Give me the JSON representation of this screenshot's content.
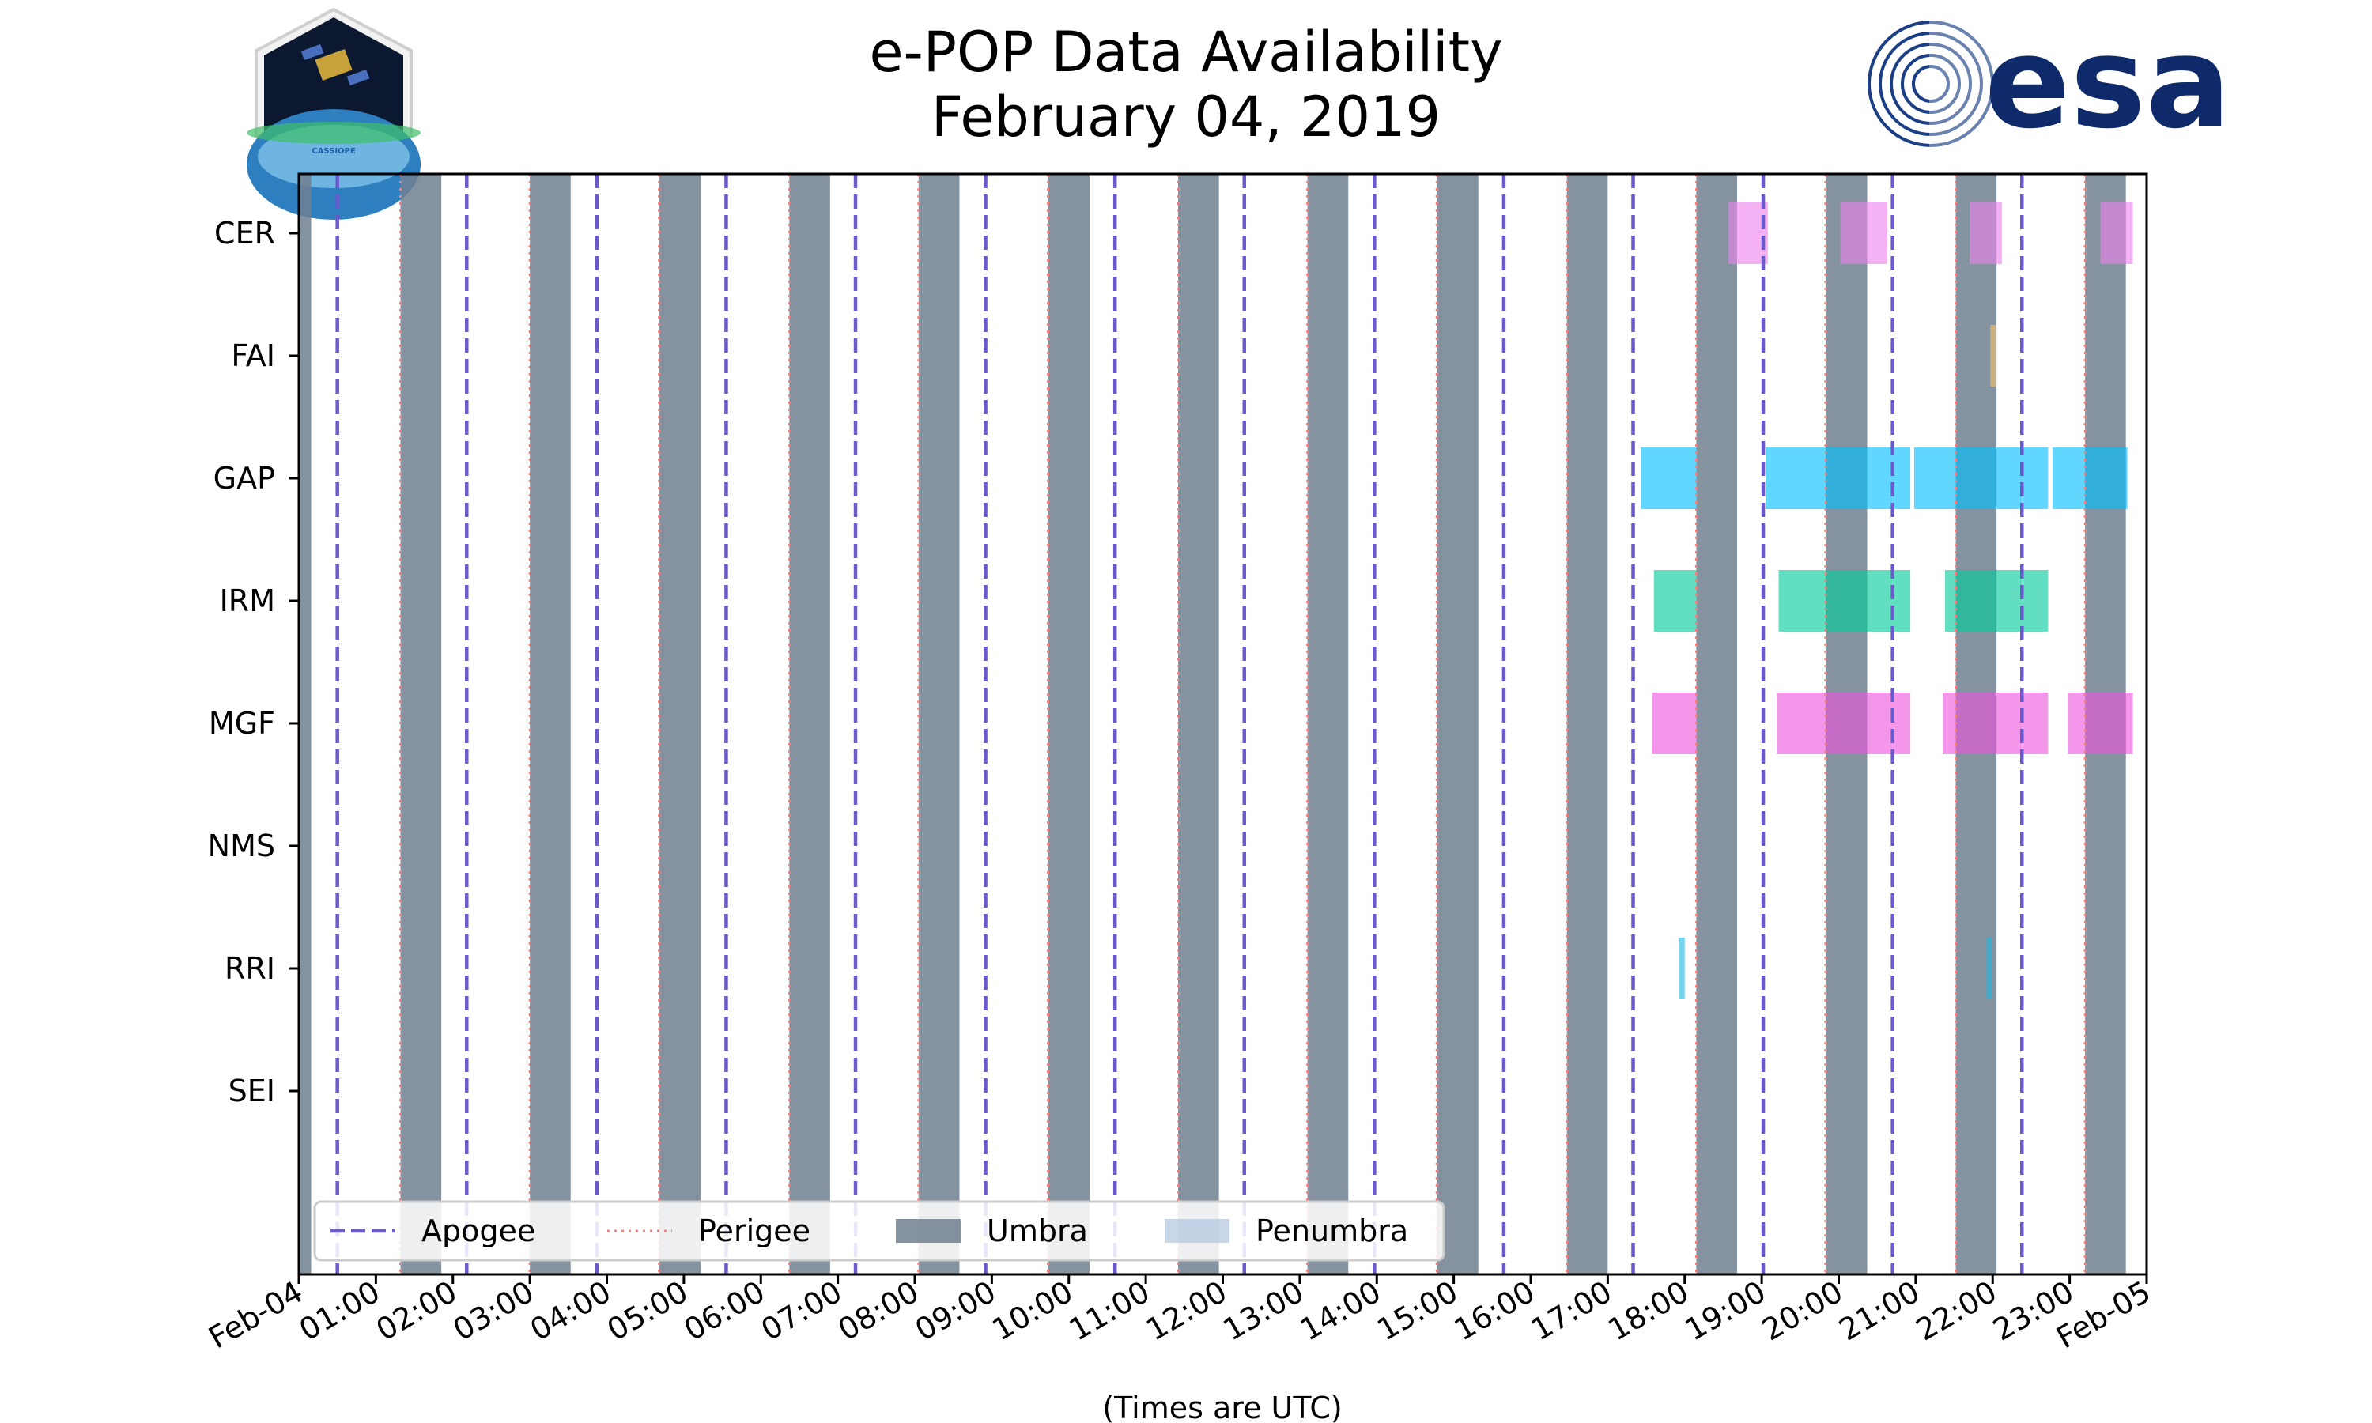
{
  "title_line1": "e-POP Data Availability",
  "title_line2": "February 04, 2019",
  "logos": {
    "left_label": "CASSIOPE",
    "right_label": "esa"
  },
  "colors": {
    "apogee": "#6a5acd",
    "perigee": "#f08080",
    "umbra": "#708090",
    "penumbra": "#b0c4de",
    "CER": "#ee82ee",
    "FAI": "#f4c56a",
    "GAP": "#00bfff",
    "IRM": "#00cc99",
    "MGF": "#ee55dd",
    "RRI": "#1fb8e0"
  },
  "chart_data": {
    "type": "timeline",
    "title": "e-POP Data Availability February 04, 2019",
    "xlabel": "(Times are UTC)",
    "ylabel": "",
    "x_range_hours": [
      0,
      24
    ],
    "x_ticks": [
      "Feb-04",
      "01:00",
      "02:00",
      "03:00",
      "04:00",
      "05:00",
      "06:00",
      "07:00",
      "08:00",
      "09:00",
      "10:00",
      "11:00",
      "12:00",
      "13:00",
      "14:00",
      "15:00",
      "16:00",
      "17:00",
      "18:00",
      "19:00",
      "20:00",
      "21:00",
      "22:00",
      "23:00",
      "Feb-05"
    ],
    "instruments": [
      "CER",
      "FAI",
      "GAP",
      "IRM",
      "MGF",
      "NMS",
      "RRI",
      "SEI"
    ],
    "apogee_hours": [
      0.5,
      2.18,
      3.87,
      5.55,
      7.23,
      8.92,
      10.6,
      12.28,
      13.97,
      15.65,
      17.33,
      19.02,
      20.7,
      22.38
    ],
    "perigee_hours": [
      1.32,
      3.0,
      4.68,
      6.37,
      8.05,
      9.73,
      11.42,
      13.1,
      14.78,
      16.47,
      18.15,
      19.83,
      21.52,
      23.2
    ],
    "umbra_intervals": [
      [
        0.0,
        0.16
      ],
      [
        1.32,
        1.85
      ],
      [
        3.0,
        3.53
      ],
      [
        4.68,
        5.22
      ],
      [
        6.37,
        6.9
      ],
      [
        8.05,
        8.58
      ],
      [
        9.73,
        10.27
      ],
      [
        11.42,
        11.95
      ],
      [
        13.1,
        13.63
      ],
      [
        14.78,
        15.32
      ],
      [
        16.47,
        17.0
      ],
      [
        18.15,
        18.68
      ],
      [
        19.83,
        20.37
      ],
      [
        21.52,
        22.05
      ],
      [
        23.2,
        23.73
      ]
    ],
    "penumbra_intervals": [],
    "availability": {
      "CER": [
        [
          18.57,
          19.08
        ],
        [
          20.02,
          20.63
        ],
        [
          21.7,
          22.12
        ],
        [
          23.4,
          23.82
        ]
      ],
      "FAI": [
        [
          21.97,
          22.03
        ]
      ],
      "GAP": [
        [
          17.43,
          18.15
        ],
        [
          19.05,
          20.93
        ],
        [
          20.98,
          22.72
        ],
        [
          22.78,
          23.75
        ]
      ],
      "IRM": [
        [
          17.6,
          18.15
        ],
        [
          19.22,
          20.93
        ],
        [
          21.38,
          22.72
        ]
      ],
      "MGF": [
        [
          17.58,
          18.15
        ],
        [
          19.2,
          20.93
        ],
        [
          21.35,
          22.72
        ],
        [
          22.98,
          23.82
        ]
      ],
      "NMS": [],
      "RRI": [
        [
          17.92,
          18.0
        ],
        [
          21.92,
          21.98
        ]
      ],
      "SEI": []
    },
    "legend": {
      "position": "lower-left",
      "entries": [
        "Apogee",
        "Perigee",
        "Umbra",
        "Penumbra"
      ]
    }
  }
}
